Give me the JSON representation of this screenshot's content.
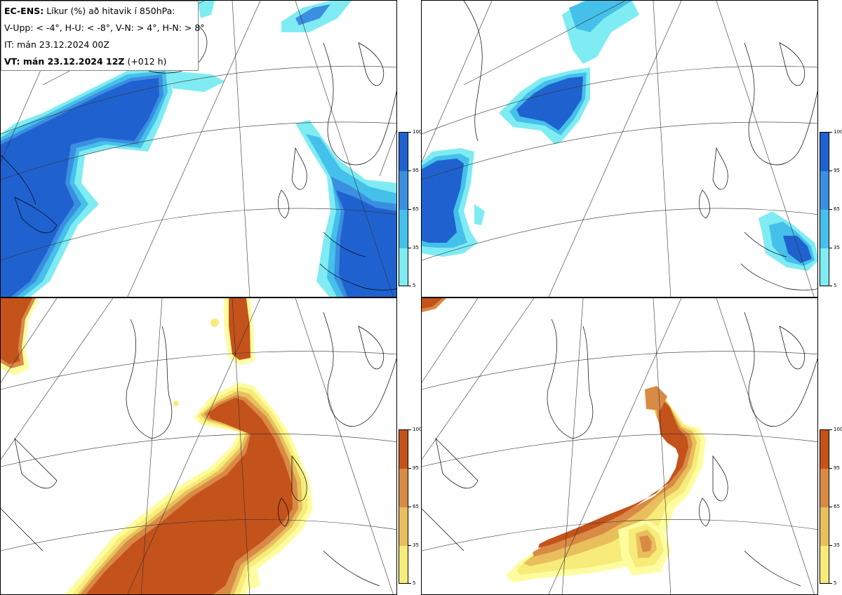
{
  "info": {
    "model": "EC-ENS:",
    "title": "Líkur (%) að hitavik í 850hPa:",
    "thresholds": "V-Upp: < -4°, H-U: < -8°, V-N: > 4°, H-N: > 8°",
    "initial_time": "IT: mán 23.12.2024 00Z",
    "valid_label": "VT: mán 23.12.2024 12Z",
    "lead_time": "(+012 h)"
  },
  "colorbars": {
    "cold": {
      "ticks": [
        "100",
        "95",
        "65",
        "35",
        "5"
      ],
      "colors": [
        "#1f62cf",
        "#3a8fe0",
        "#45c0ea",
        "#7fecf3",
        "#b9fbfb"
      ]
    },
    "warm": {
      "ticks": [
        "100",
        "95",
        "65",
        "35",
        "5"
      ],
      "colors": [
        "#c4521b",
        "#d98a45",
        "#e8bf5c",
        "#f7ec7a",
        "#fdfda0"
      ]
    }
  },
  "panels": [
    {
      "id": "top-left",
      "variable": "< -4°",
      "palette": "cold"
    },
    {
      "id": "top-right",
      "variable": "< -8°",
      "palette": "cold"
    },
    {
      "id": "bottom-left",
      "variable": "> 4°",
      "palette": "warm"
    },
    {
      "id": "bottom-right",
      "variable": "> 8°",
      "palette": "warm"
    }
  ]
}
